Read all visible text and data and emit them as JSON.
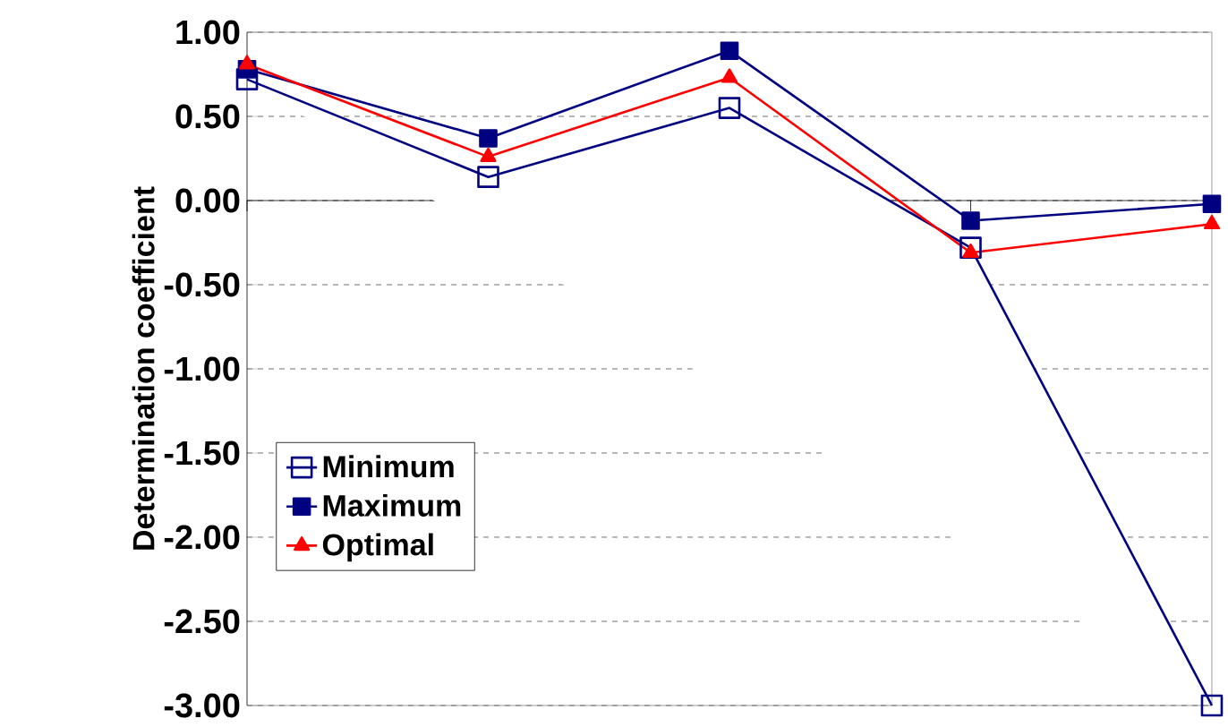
{
  "chart_data": {
    "type": "line",
    "ylabel": "Determination coefficient",
    "categories": [
      null,
      null,
      null,
      null,
      null
    ],
    "ylim": [
      -3.0,
      1.0
    ],
    "yticks": [
      {
        "value": 1.0,
        "label": "1.00"
      },
      {
        "value": 0.5,
        "label": "0.50"
      },
      {
        "value": 0.0,
        "label": "0.00"
      },
      {
        "value": -0.5,
        "label": "-0.50"
      },
      {
        "value": -1.0,
        "label": "-1.00"
      },
      {
        "value": -1.5,
        "label": "-1.50"
      },
      {
        "value": -2.0,
        "label": "-2.00"
      },
      {
        "value": -2.5,
        "label": "-2.50"
      },
      {
        "value": -3.0,
        "label": "-3.00"
      }
    ],
    "grid": "y",
    "legend": "left",
    "series": [
      {
        "name": "Minimum",
        "color": "#000080",
        "marker": "square",
        "values": [
          0.72,
          0.14,
          0.55,
          -0.28,
          -3.0
        ]
      },
      {
        "name": "Maximum",
        "color": "#000080",
        "marker": "square*",
        "values": [
          0.78,
          0.37,
          0.89,
          -0.12,
          -0.02
        ]
      },
      {
        "name": "Optimal",
        "color": "#ff0000",
        "marker": "triangle",
        "values": [
          0.81,
          0.26,
          0.73,
          -0.31,
          -0.14
        ]
      }
    ]
  }
}
